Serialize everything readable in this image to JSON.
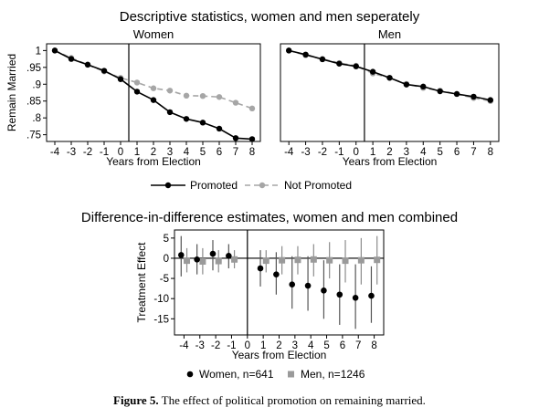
{
  "top_title": "Descriptive statistics, women and men seperately",
  "bottom_title": "Difference-in-difference estimates, women and men combined",
  "caption": {
    "label": "Figure 5.",
    "text": " The effect of political promotion on remaining married."
  },
  "colors": {
    "promoted": "#000000",
    "not_promoted": "#a6a6a6",
    "women": "#000000",
    "men": "#9a9a9a",
    "ci_women": "#555555",
    "ci_men": "#8c8c8c"
  },
  "chart_data": [
    {
      "type": "line",
      "title": "Women",
      "xlabel": "Years from Election",
      "ylabel": "Remain Married",
      "x": [
        -4,
        -3,
        -2,
        -1,
        0,
        1,
        2,
        3,
        4,
        5,
        6,
        7,
        8
      ],
      "xticks": [
        "-4",
        "-3",
        "-2",
        "-1",
        "0",
        "1",
        "2",
        "3",
        "4",
        "5",
        "6",
        "7",
        "8"
      ],
      "yticks": [
        "1",
        ".95",
        ".9",
        ".85",
        ".8",
        ".75"
      ],
      "ytick_values": [
        1,
        0.95,
        0.9,
        0.85,
        0.8,
        0.75
      ],
      "ylim": [
        0.73,
        1.02
      ],
      "xlim": [
        -4.5,
        8.5
      ],
      "vline": 0.5,
      "series": [
        {
          "name": "Promoted",
          "values": [
            1.0,
            0.975,
            0.958,
            0.94,
            0.915,
            0.878,
            0.853,
            0.817,
            0.797,
            0.786,
            0.768,
            0.74,
            0.737
          ]
        },
        {
          "name": "Not Promoted",
          "values": [
            1.0,
            0.978,
            0.958,
            0.938,
            0.919,
            0.905,
            0.888,
            0.881,
            0.866,
            0.865,
            0.862,
            0.845,
            0.828
          ]
        }
      ]
    },
    {
      "type": "line",
      "title": "Men",
      "xlabel": "Years from Election",
      "ylabel": "",
      "x": [
        -4,
        -3,
        -2,
        -1,
        0,
        1,
        2,
        3,
        4,
        5,
        6,
        7,
        8
      ],
      "xticks": [
        "-4",
        "-3",
        "-2",
        "-1",
        "0",
        "1",
        "2",
        "3",
        "4",
        "5",
        "6",
        "7",
        "8"
      ],
      "ylim": [
        0.73,
        1.02
      ],
      "xlim": [
        -4.5,
        8.5
      ],
      "vline": 0.5,
      "series": [
        {
          "name": "Promoted",
          "values": [
            1.0,
            0.988,
            0.974,
            0.961,
            0.953,
            0.937,
            0.919,
            0.899,
            0.893,
            0.879,
            0.871,
            0.863,
            0.853
          ]
        },
        {
          "name": "Not Promoted",
          "values": [
            1.0,
            0.986,
            0.975,
            0.963,
            0.955,
            0.932,
            0.919,
            0.901,
            0.889,
            0.881,
            0.871,
            0.859,
            0.85
          ]
        }
      ]
    },
    {
      "type": "scatter",
      "title": "",
      "xlabel": "Years from Election",
      "ylabel": "Treatment Effect",
      "xticks": [
        "-4",
        "-3",
        "-2",
        "-1",
        "0",
        "1",
        "2",
        "3",
        "4",
        "5",
        "6",
        "7",
        "8"
      ],
      "xtick_values": [
        -4,
        -3,
        -2,
        -1,
        0,
        1,
        2,
        3,
        4,
        5,
        6,
        7,
        8
      ],
      "yticks": [
        "5",
        "0",
        "-5",
        "-10",
        "-15"
      ],
      "ytick_values": [
        5,
        0,
        -5,
        -10,
        -15
      ],
      "ylim": [
        -19,
        7
      ],
      "xlim": [
        -4.6,
        8.6
      ],
      "vline": 0,
      "series": [
        {
          "name": "Women, n=641",
          "x": [
            -4,
            -3,
            -2,
            -1,
            1,
            2,
            3,
            4,
            5,
            6,
            7,
            8
          ],
          "values": [
            0.8,
            -0.3,
            1.1,
            0.6,
            -2.5,
            -4.0,
            -6.5,
            -6.8,
            -8.0,
            -9.0,
            -9.8,
            -9.3
          ],
          "ci_low": [
            -4.5,
            -4.0,
            -3.0,
            -2.5,
            -7.0,
            -9.0,
            -12.5,
            -13.0,
            -15.0,
            -16.5,
            -17.5,
            -16.0
          ],
          "ci_high": [
            5.5,
            3.5,
            4.5,
            3.5,
            2.0,
            1.5,
            0.5,
            0.5,
            -0.5,
            -1.5,
            -1.5,
            -2.0
          ]
        },
        {
          "name": "Men, n=1246",
          "x": [
            -4,
            -3,
            -2,
            -1,
            1,
            2,
            3,
            4,
            5,
            6,
            7,
            8
          ],
          "values": [
            -0.6,
            -0.8,
            -0.7,
            -0.3,
            -0.6,
            -0.5,
            -0.4,
            -0.3,
            -0.5,
            -0.6,
            -0.5,
            -0.4
          ],
          "ci_low": [
            -3.5,
            -4.0,
            -3.5,
            -2.5,
            -3.5,
            -4.0,
            -4.0,
            -4.5,
            -5.0,
            -6.0,
            -6.5,
            -6.5
          ],
          "ci_high": [
            2.5,
            2.5,
            2.0,
            2.0,
            2.0,
            3.0,
            3.0,
            3.5,
            4.0,
            4.5,
            5.0,
            5.5
          ]
        }
      ]
    }
  ]
}
